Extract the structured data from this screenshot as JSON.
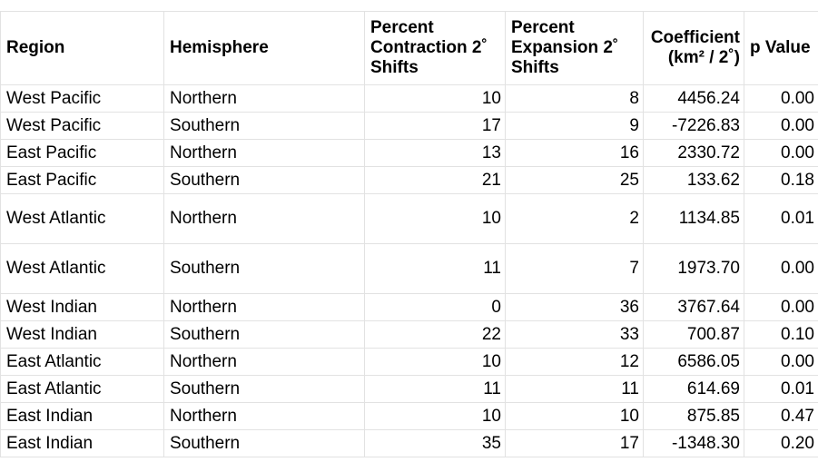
{
  "table": {
    "headers": {
      "region": "Region",
      "hemisphere": "Hemisphere",
      "contraction_line1": "Percent",
      "contraction_line2": "Contraction 2˚",
      "contraction_line3": "Shifts",
      "expansion_line1": "Percent",
      "expansion_line2": "Expansion 2˚",
      "expansion_line3": "Shifts",
      "coefficient_line1": "Coefficient",
      "coefficient_line2": "(km² / 2˚)",
      "pvalue": "p Value"
    },
    "rows": [
      {
        "region": "West Pacific",
        "hemisphere": "Northern",
        "contraction": "10",
        "expansion": "8",
        "coefficient": "4456.24",
        "p": "0.00"
      },
      {
        "region": "West Pacific",
        "hemisphere": "Southern",
        "contraction": "17",
        "expansion": "9",
        "coefficient": "-7226.83",
        "p": "0.00"
      },
      {
        "region": "East Pacific",
        "hemisphere": "Northern",
        "contraction": "13",
        "expansion": "16",
        "coefficient": "2330.72",
        "p": "0.00"
      },
      {
        "region": "East Pacific",
        "hemisphere": "Southern",
        "contraction": "21",
        "expansion": "25",
        "coefficient": "133.62",
        "p": "0.18"
      },
      {
        "region": "West Atlantic",
        "hemisphere": "Northern",
        "contraction": "10",
        "expansion": "2",
        "coefficient": "1134.85",
        "p": "0.01"
      },
      {
        "region": "West Atlantic",
        "hemisphere": "Southern",
        "contraction": "11",
        "expansion": "7",
        "coefficient": "1973.70",
        "p": "0.00"
      },
      {
        "region": "West Indian",
        "hemisphere": "Northern",
        "contraction": "0",
        "expansion": "36",
        "coefficient": "3767.64",
        "p": "0.00"
      },
      {
        "region": "West Indian",
        "hemisphere": "Southern",
        "contraction": "22",
        "expansion": "33",
        "coefficient": "700.87",
        "p": "0.10"
      },
      {
        "region": "East Atlantic",
        "hemisphere": "Northern",
        "contraction": "10",
        "expansion": "12",
        "coefficient": "6586.05",
        "p": "0.00"
      },
      {
        "region": "East Atlantic",
        "hemisphere": "Southern",
        "contraction": "11",
        "expansion": "11",
        "coefficient": "614.69",
        "p": "0.01"
      },
      {
        "region": "East Indian",
        "hemisphere": "Northern",
        "contraction": "10",
        "expansion": "10",
        "coefficient": "875.85",
        "p": "0.47"
      },
      {
        "region": "East Indian",
        "hemisphere": "Southern",
        "contraction": "35",
        "expansion": "17",
        "coefficient": "-1348.30",
        "p": "0.20"
      }
    ]
  }
}
